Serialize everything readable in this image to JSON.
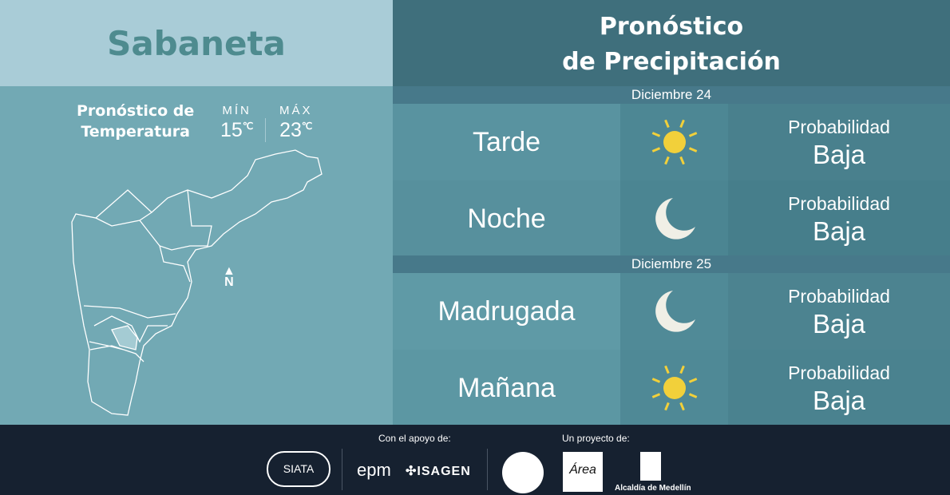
{
  "location": "Sabaneta",
  "temperature": {
    "title_line1": "Pronóstico de",
    "title_line2": "Temperatura",
    "min_label": "MÍN",
    "min_value": "15",
    "max_label": "MÁX",
    "max_value": "23",
    "unit": "℃"
  },
  "map": {
    "north_label": "N"
  },
  "precip": {
    "title_line1": "Pronóstico",
    "title_line2": "de Precipitación"
  },
  "days": [
    {
      "date": "Diciembre 24",
      "periods": [
        {
          "name": "Tarde",
          "icon": "sun-icon",
          "prob_label": "Probabilidad",
          "prob_value": "Baja"
        },
        {
          "name": "Noche",
          "icon": "moon-icon",
          "prob_label": "Probabilidad",
          "prob_value": "Baja"
        }
      ]
    },
    {
      "date": "Diciembre 25",
      "periods": [
        {
          "name": "Madrugada",
          "icon": "moon-icon",
          "prob_label": "Probabilidad",
          "prob_value": "Baja"
        },
        {
          "name": "Mañana",
          "icon": "sun-icon",
          "prob_label": "Probabilidad",
          "prob_value": "Baja"
        }
      ]
    }
  ],
  "footer": {
    "support_label": "Con el apoyo de:",
    "project_label": "Un proyecto de:",
    "logos": [
      "SIATA",
      "epm",
      "ISAGEN",
      "Área Metropolitana Valle de Aburrá",
      "Alcaldía de Medellín"
    ],
    "alcaldia_text": "Alcaldía de Medellín"
  },
  "colors": {
    "sun": "#f2d03a",
    "moon": "#f0efe6",
    "accent": "#3f6f7c"
  }
}
